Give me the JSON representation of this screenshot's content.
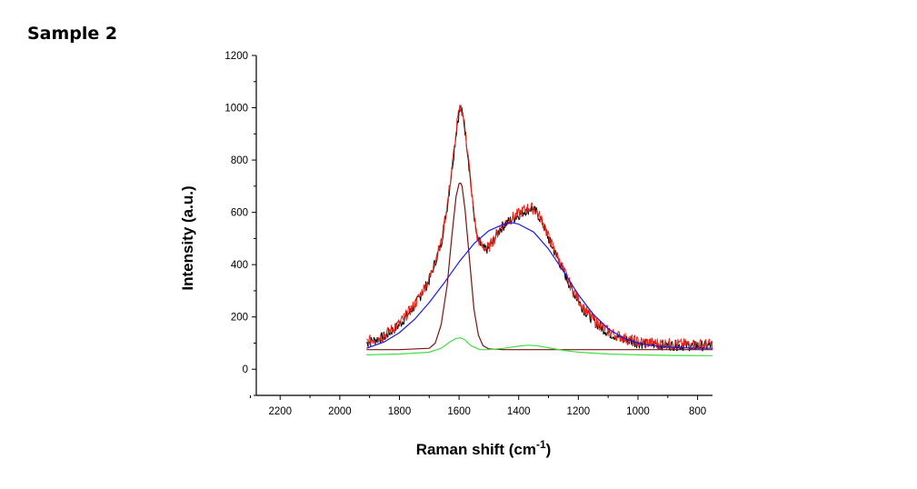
{
  "page": {
    "heading": "Sample 2"
  },
  "chart_data": {
    "type": "line",
    "title": "",
    "xlabel": "Raman shift (cm",
    "xlabel_superscript": "-1",
    "xlabel_suffix": ")",
    "ylabel": "Intensity (a.u.)",
    "xlim": [
      2280,
      750
    ],
    "ylim": [
      -100,
      1200
    ],
    "x_reversed": true,
    "grid": false,
    "legend": "none",
    "x_ticks": [
      2200,
      2000,
      1800,
      1600,
      1400,
      1200,
      1000,
      800
    ],
    "x_tick_labels": [
      "2200",
      "2000",
      "1800",
      "1600",
      "1400",
      "1200",
      "1000",
      "800"
    ],
    "y_ticks": [
      0,
      200,
      400,
      600,
      800,
      1000,
      1200
    ],
    "y_tick_labels": [
      "0",
      "200",
      "400",
      "600",
      "800",
      "1000",
      "1200"
    ],
    "series": [
      {
        "color": "#000000",
        "style": "noisy",
        "x": [
          1910,
          1850,
          1800,
          1750,
          1700,
          1660,
          1640,
          1620,
          1605,
          1595,
          1585,
          1570,
          1555,
          1540,
          1520,
          1500,
          1480,
          1460,
          1440,
          1420,
          1400,
          1380,
          1360,
          1340,
          1320,
          1300,
          1260,
          1220,
          1180,
          1140,
          1100,
          1050,
          1000,
          950,
          900,
          850,
          800,
          750
        ],
        "y": [
          100,
          125,
          170,
          240,
          340,
          480,
          620,
          800,
          950,
          1000,
          960,
          820,
          640,
          500,
          460,
          460,
          500,
          540,
          560,
          575,
          590,
          605,
          615,
          600,
          560,
          500,
          400,
          300,
          225,
          175,
          140,
          115,
          100,
          95,
          92,
          90,
          90,
          90
        ]
      },
      {
        "color": "#e8261a",
        "style": "noisy",
        "x": [
          1910,
          1850,
          1800,
          1750,
          1700,
          1660,
          1640,
          1620,
          1605,
          1595,
          1585,
          1570,
          1555,
          1540,
          1520,
          1500,
          1480,
          1460,
          1440,
          1420,
          1400,
          1380,
          1360,
          1340,
          1320,
          1300,
          1260,
          1220,
          1180,
          1140,
          1100,
          1050,
          1000,
          950,
          900,
          850,
          800,
          750
        ],
        "y": [
          105,
          130,
          175,
          245,
          345,
          485,
          625,
          805,
          955,
          1005,
          965,
          825,
          645,
          505,
          465,
          465,
          505,
          545,
          565,
          580,
          595,
          610,
          620,
          605,
          565,
          505,
          405,
          305,
          230,
          180,
          145,
          120,
          105,
          100,
          97,
          95,
          95,
          95
        ]
      },
      {
        "color": "#1a1ae6",
        "style": "smooth",
        "x": [
          1910,
          1850,
          1800,
          1750,
          1700,
          1650,
          1600,
          1550,
          1500,
          1450,
          1420,
          1400,
          1350,
          1300,
          1250,
          1200,
          1150,
          1100,
          1050,
          1000,
          950,
          900,
          850,
          800,
          750
        ],
        "y": [
          80,
          105,
          140,
          190,
          255,
          330,
          410,
          480,
          530,
          555,
          560,
          555,
          525,
          460,
          375,
          285,
          210,
          155,
          120,
          100,
          90,
          85,
          82,
          80,
          80
        ]
      },
      {
        "color": "#7a1414",
        "style": "smooth",
        "x": [
          1910,
          1800,
          1700,
          1680,
          1660,
          1640,
          1625,
          1610,
          1600,
          1595,
          1590,
          1580,
          1565,
          1550,
          1535,
          1520,
          1500,
          1450,
          1400,
          1300,
          1200,
          1100,
          1000,
          900,
          800,
          750
        ],
        "y": [
          75,
          75,
          80,
          100,
          170,
          320,
          500,
          660,
          710,
          712,
          700,
          610,
          420,
          230,
          130,
          90,
          78,
          75,
          75,
          75,
          75,
          75,
          75,
          75,
          75,
          75
        ]
      },
      {
        "color": "#44dd44",
        "style": "smooth",
        "x": [
          1910,
          1800,
          1700,
          1660,
          1630,
          1610,
          1595,
          1580,
          1560,
          1530,
          1500,
          1450,
          1400,
          1370,
          1340,
          1300,
          1250,
          1200,
          1100,
          1000,
          900,
          800,
          750
        ],
        "y": [
          55,
          58,
          65,
          80,
          105,
          118,
          120,
          112,
          90,
          75,
          75,
          80,
          88,
          92,
          90,
          82,
          72,
          65,
          58,
          55,
          53,
          52,
          52
        ]
      }
    ]
  }
}
